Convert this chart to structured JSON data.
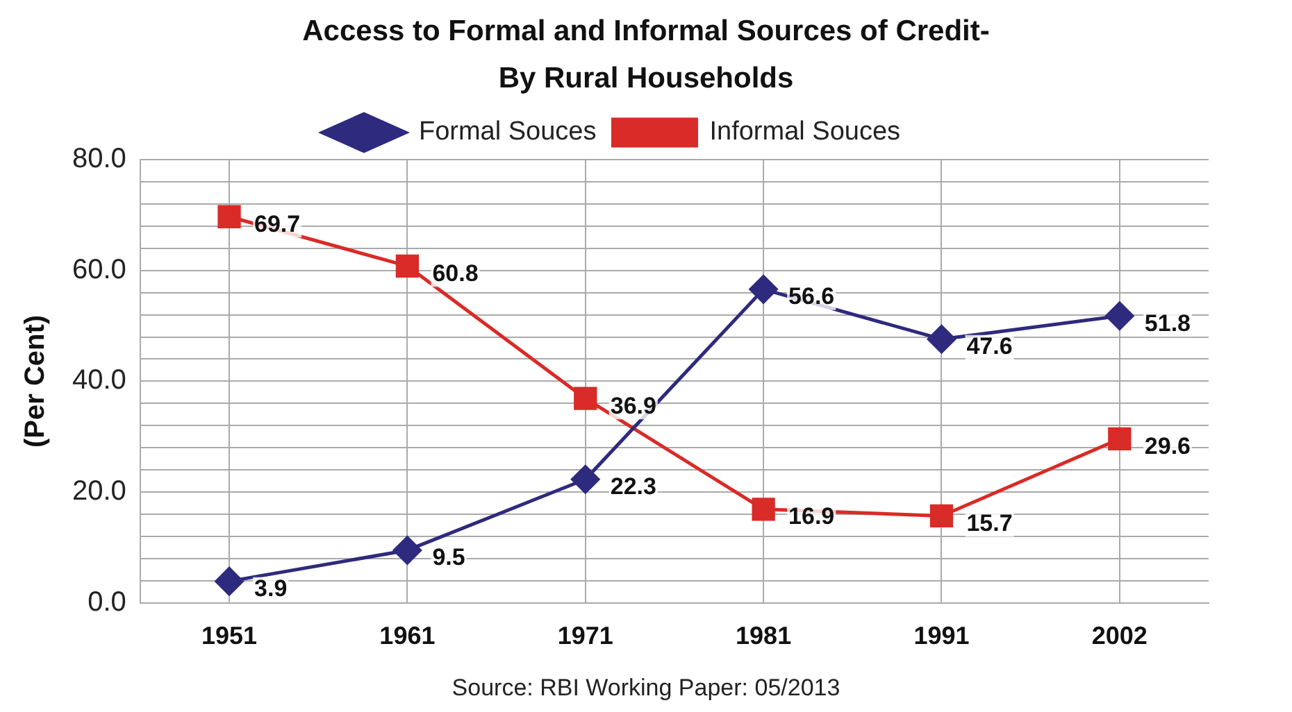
{
  "chart_data": {
    "type": "line",
    "title": "Access to Formal and Informal Sources of Credit- By Rural Households",
    "ylabel": "(Per Cent)",
    "categories": [
      "1951",
      "1961",
      "1971",
      "1981",
      "1991",
      "2002"
    ],
    "series": [
      {
        "name": "Formal Souces",
        "color": "#2e2a7e",
        "marker": "diamond",
        "values": [
          3.9,
          9.5,
          22.3,
          56.6,
          47.6,
          51.8
        ]
      },
      {
        "name": "Informal Souces",
        "color": "#d92b27",
        "marker": "square",
        "values": [
          69.7,
          60.8,
          36.9,
          16.9,
          15.7,
          29.6
        ]
      }
    ],
    "ylim": [
      0,
      80
    ],
    "yticks": [
      {
        "value": 0,
        "label": "0.0"
      },
      {
        "value": 4,
        "label": null
      },
      {
        "value": 8,
        "label": null
      },
      {
        "value": 12,
        "label": null
      },
      {
        "value": 16,
        "label": null
      },
      {
        "value": 20,
        "label": "20.0"
      },
      {
        "value": 24,
        "label": null
      },
      {
        "value": 28,
        "label": null
      },
      {
        "value": 32,
        "label": null
      },
      {
        "value": 36,
        "label": null
      },
      {
        "value": 40,
        "label": "40.0"
      },
      {
        "value": 44,
        "label": null
      },
      {
        "value": 48,
        "label": null
      },
      {
        "value": 52,
        "label": null
      },
      {
        "value": 56,
        "label": null
      },
      {
        "value": 60,
        "label": "60.0"
      },
      {
        "value": 64,
        "label": null
      },
      {
        "value": 68,
        "label": null
      },
      {
        "value": 72,
        "label": null
      },
      {
        "value": 76,
        "label": null
      },
      {
        "value": 80,
        "label": "80.0"
      }
    ],
    "grid": true,
    "legend": "top",
    "data_labels": true,
    "line_style": "solid",
    "annotations": [
      "Source: RBI Working Paper: 05/2013"
    ]
  }
}
